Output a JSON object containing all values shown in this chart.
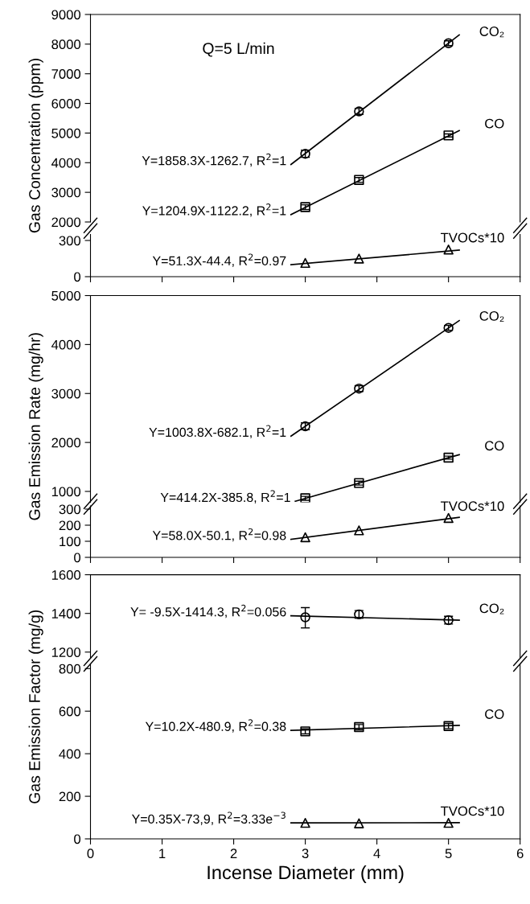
{
  "chart_data": [
    {
      "type": "line",
      "ylabel": "Gas Concentration (ppm)",
      "xlim": [
        0,
        6
      ],
      "ylim": [
        2000,
        9000
      ],
      "yticks": [
        2000,
        3000,
        4000,
        5000,
        6000,
        7000,
        8000,
        9000
      ],
      "tick_labels": "y",
      "annotations": [
        "Q=5 L/min",
        "Y=1858.3X-1262.7, R$^{2}$=1",
        "Y=1204.9X-1122.2, R$^{2}$=1"
      ],
      "series": [
        {
          "type": "scatter",
          "name": "CO₂",
          "color": "#000000",
          "marker": "circle",
          "x": [
            3,
            3.75,
            5
          ],
          "values": [
            4300,
            5730,
            8030
          ],
          "errors": [
            120,
            100,
            80
          ]
        },
        {
          "type": "scatter",
          "name": "CO",
          "color": "#000000",
          "marker": "square",
          "x": [
            3,
            3.75,
            5
          ],
          "values": [
            2500,
            3420,
            4920
          ],
          "errors": [
            80,
            80,
            50
          ]
        },
        {
          "type": "line",
          "color": "#000000",
          "x": [
            2.8,
            5.15
          ],
          "values": [
            3940,
            8310
          ]
        },
        {
          "type": "line",
          "color": "#000000",
          "x": [
            2.8,
            5.15
          ],
          "values": [
            2250,
            5080
          ]
        }
      ]
    },
    {
      "type": "line",
      "xlim": [
        0,
        6
      ],
      "xticks": [
        0,
        1,
        2,
        3,
        4,
        5,
        6
      ],
      "ylim": [
        0,
        350
      ],
      "yticks": [
        0,
        300
      ],
      "tick_labels": "y",
      "annotations": [
        "Y=51.3X-44.4, R$^{2}$=0.97"
      ],
      "series": [
        {
          "type": "scatter",
          "name": "TVOCs*10",
          "color": "#000000",
          "marker": "triangle",
          "x": [
            3,
            3.75,
            5
          ],
          "values": [
            114,
            150,
            225
          ]
        },
        {
          "type": "line",
          "color": "#000000",
          "x": [
            2.8,
            5.15
          ],
          "values": [
            99,
            220
          ]
        }
      ]
    },
    {
      "type": "line",
      "ylabel": "Gas Emission Rate (mg/hr)",
      "xlim": [
        0,
        6
      ],
      "ylim": [
        780,
        5000
      ],
      "yticks": [
        1000,
        2000,
        3000,
        4000,
        5000
      ],
      "tick_labels": "y",
      "annotations": [
        "Y=1003.8X-682.1, R$^{2}$=1",
        "Y=414.2X-385.8, R$^{2}$=1"
      ],
      "series": [
        {
          "type": "scatter",
          "name": "CO₂",
          "color": "#000000",
          "marker": "circle",
          "x": [
            3,
            3.75,
            5
          ],
          "values": [
            2330,
            3100,
            4340
          ],
          "errors": [
            70,
            60,
            50
          ]
        },
        {
          "type": "scatter",
          "name": "CO",
          "color": "#000000",
          "marker": "square",
          "x": [
            3,
            3.75,
            5
          ],
          "values": [
            860,
            1170,
            1690
          ],
          "errors": [
            40,
            40,
            30
          ]
        },
        {
          "type": "line",
          "color": "#000000",
          "x": [
            2.8,
            5.15
          ],
          "values": [
            2130,
            4490
          ]
        },
        {
          "type": "line",
          "color": "#000000",
          "x": [
            2.86,
            5.15
          ],
          "values": [
            800,
            1750
          ]
        }
      ]
    },
    {
      "type": "line",
      "xlim": [
        0,
        6
      ],
      "xticks": [
        0,
        1,
        2,
        3,
        4,
        5,
        6
      ],
      "ylim": [
        0,
        320
      ],
      "yticks": [
        0,
        100,
        200,
        300
      ],
      "tick_labels": "y",
      "annotations": [
        "Y=58.0X-50.1, R$^{2}$=0.98"
      ],
      "series": [
        {
          "type": "scatter",
          "name": "TVOCs*10",
          "color": "#000000",
          "marker": "triangle",
          "x": [
            3,
            3.75,
            5
          ],
          "values": [
            125,
            168,
            245
          ]
        },
        {
          "type": "line",
          "color": "#000000",
          "x": [
            2.8,
            5.15
          ],
          "values": [
            112,
            249
          ]
        }
      ]
    },
    {
      "type": "line",
      "ylabel": "Gas Emission Factor (mg/g)",
      "xlim": [
        0,
        6
      ],
      "ylim": [
        1170,
        1600
      ],
      "yticks": [
        1200,
        1400,
        1600
      ],
      "tick_labels": "y",
      "annotations": [
        "Y= -9.5X-1414.3, R$^{2}$=0.056"
      ],
      "series": [
        {
          "type": "scatter",
          "name": "CO₂",
          "color": "#000000",
          "marker": "circle",
          "x": [
            3,
            3.75,
            5
          ],
          "values": [
            1380,
            1395,
            1365
          ],
          "errors": [
            [
              1325,
              1430
            ],
            20,
            20
          ]
        },
        {
          "type": "line",
          "color": "#000000",
          "x": [
            2.8,
            5.15
          ],
          "values": [
            1388,
            1365
          ]
        }
      ]
    },
    {
      "type": "line",
      "xlabel": "Incense Diameter (mm)",
      "xlim": [
        0,
        6
      ],
      "xticks": [
        0,
        1,
        2,
        3,
        4,
        5,
        6
      ],
      "ylim": [
        0,
        820
      ],
      "yticks": [
        0,
        200,
        400,
        600,
        800
      ],
      "annotations": [
        "Y=10.2X-480.9, R$^{2}$=0.38",
        "Y=0.35X-73,9, R$^{2}$=3.33e$^{−3}$"
      ],
      "series": [
        {
          "type": "scatter",
          "name": "CO",
          "color": "#000000",
          "marker": "square",
          "x": [
            3,
            3.75,
            5
          ],
          "values": [
            505,
            525,
            530
          ],
          "errors": [
            12,
            12,
            12
          ]
        },
        {
          "type": "scatter",
          "name": "TVOCs*10",
          "color": "#000000",
          "marker": "triangle",
          "x": [
            3,
            3.75,
            5
          ],
          "values": [
            75,
            73,
            75
          ]
        },
        {
          "type": "line",
          "color": "#000000",
          "x": [
            2.8,
            5.15
          ],
          "values": [
            510,
            533
          ]
        },
        {
          "type": "line",
          "color": "#000000",
          "x": [
            2.8,
            5.15
          ],
          "values": [
            75,
            76
          ]
        }
      ]
    }
  ]
}
